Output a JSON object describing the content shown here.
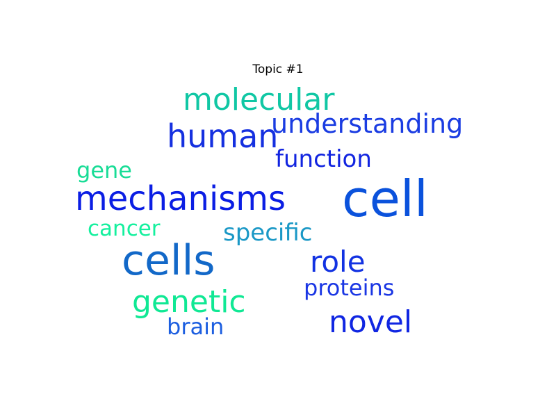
{
  "chart_data": {
    "type": "wordcloud",
    "title": "Topic #1",
    "words": [
      {
        "text": "cell",
        "color": "#0b52dc"
      },
      {
        "text": "cells",
        "color": "#1268c8"
      },
      {
        "text": "mechanisms",
        "color": "#0b1ee4"
      },
      {
        "text": "molecular",
        "color": "#10c7a4"
      },
      {
        "text": "human",
        "color": "#1530e0"
      },
      {
        "text": "understanding",
        "color": "#1a3ce2"
      },
      {
        "text": "genetic",
        "color": "#10e894"
      },
      {
        "text": "role",
        "color": "#1232e2"
      },
      {
        "text": "novel",
        "color": "#1026e2"
      },
      {
        "text": "function",
        "color": "#1124e0"
      },
      {
        "text": "specific",
        "color": "#1a98c6"
      },
      {
        "text": "proteins",
        "color": "#1a36e4"
      },
      {
        "text": "gene",
        "color": "#18dc96"
      },
      {
        "text": "cancer",
        "color": "#14f09e"
      },
      {
        "text": "brain",
        "color": "#1c5ee0"
      }
    ]
  }
}
